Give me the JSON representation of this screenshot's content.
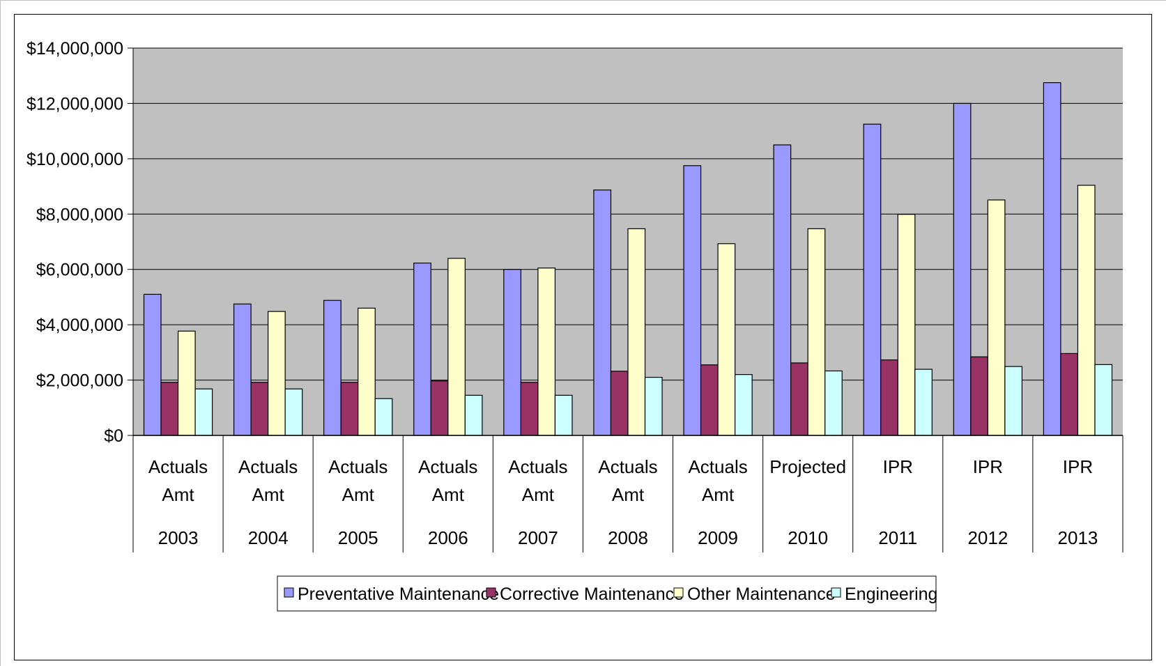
{
  "chart_data": {
    "type": "bar",
    "title": "",
    "xlabel": "",
    "ylabel": "",
    "ylim": [
      0,
      14000000
    ],
    "y_ticks": [
      "$0",
      "$2,000,000",
      "$4,000,000",
      "$6,000,000",
      "$8,000,000",
      "$10,000,000",
      "$12,000,000",
      "$14,000,000"
    ],
    "categories": [
      {
        "line1": "Actuals",
        "line2": "Amt",
        "year": "2003"
      },
      {
        "line1": "Actuals",
        "line2": "Amt",
        "year": "2004"
      },
      {
        "line1": "Actuals",
        "line2": "Amt",
        "year": "2005"
      },
      {
        "line1": "Actuals",
        "line2": "Amt",
        "year": "2006"
      },
      {
        "line1": "Actuals",
        "line2": "Amt",
        "year": "2007"
      },
      {
        "line1": "Actuals",
        "line2": "Amt",
        "year": "2008"
      },
      {
        "line1": "Actuals",
        "line2": "Amt",
        "year": "2009"
      },
      {
        "line1": "Projected",
        "line2": "",
        "year": "2010"
      },
      {
        "line1": "IPR",
        "line2": "",
        "year": "2011"
      },
      {
        "line1": "IPR",
        "line2": "",
        "year": "2012"
      },
      {
        "line1": "IPR",
        "line2": "",
        "year": "2013"
      }
    ],
    "series": [
      {
        "name": "Preventative Maintenance",
        "color": "#9999ff",
        "values": [
          5100000,
          4750000,
          4880000,
          6230000,
          6000000,
          8870000,
          9750000,
          10500000,
          11250000,
          12000000,
          12750000
        ]
      },
      {
        "name": "Corrective Maintenance",
        "color": "#993366",
        "values": [
          1920000,
          1920000,
          1920000,
          1970000,
          1920000,
          2320000,
          2550000,
          2620000,
          2730000,
          2840000,
          2960000
        ]
      },
      {
        "name": "Other Maintenance",
        "color": "#ffffcc",
        "values": [
          3770000,
          4480000,
          4600000,
          6400000,
          6050000,
          7470000,
          6930000,
          7470000,
          7990000,
          8510000,
          9040000
        ]
      },
      {
        "name": "Engineering",
        "color": "#ccffff",
        "values": [
          1680000,
          1680000,
          1330000,
          1450000,
          1450000,
          2100000,
          2200000,
          2330000,
          2390000,
          2490000,
          2560000
        ]
      }
    ],
    "grid": true,
    "plot_background": "#c0c0c0",
    "legend_position": "bottom"
  }
}
